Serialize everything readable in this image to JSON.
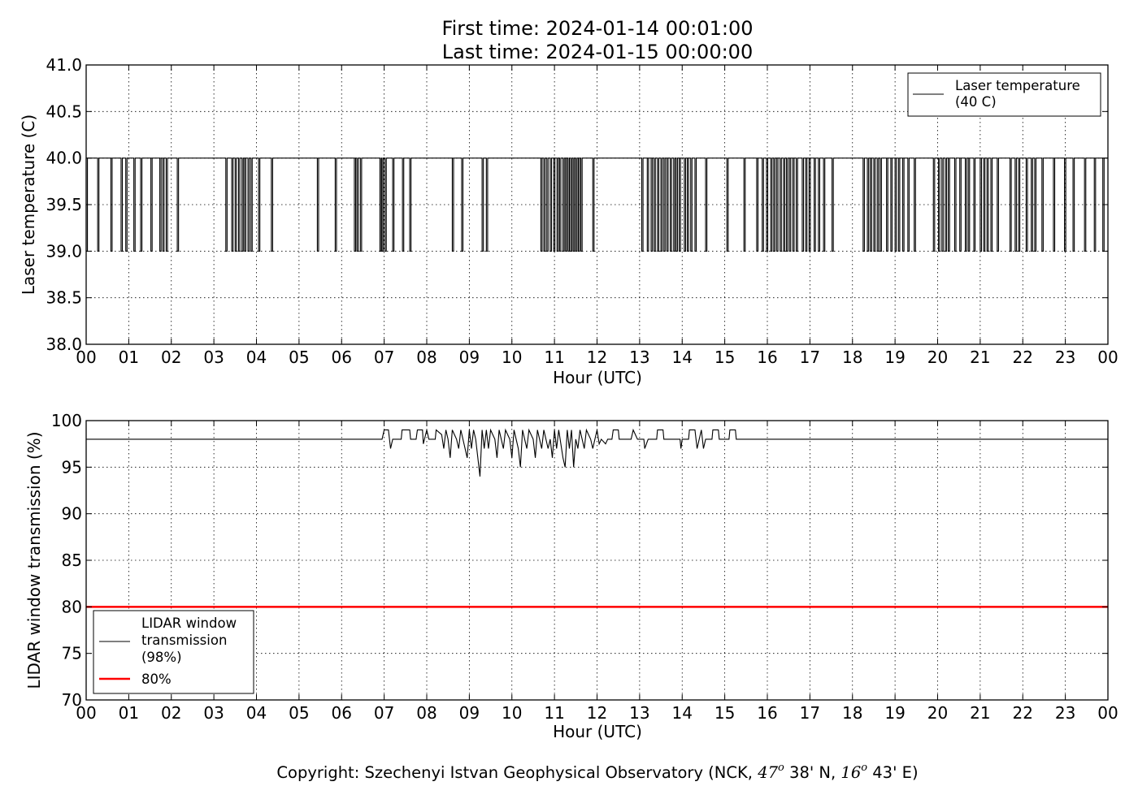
{
  "header": {
    "title_line1": "First time: 2024-01-14 00:01:00",
    "title_line2": "Last time: 2024-01-15 00:00:00"
  },
  "footer": {
    "prefix": "Copyright: Szechenyi Istvan Geophysical Observatory (NCK, ",
    "lat_deg": "47",
    "lat_min": " 38' N, ",
    "lon_deg": "16",
    "lon_min": " 43' E)",
    "degree_mark": "o"
  },
  "chart_data": [
    {
      "type": "line",
      "ylabel": "Laser temperature (C)",
      "xlabel": "Hour (UTC)",
      "x_tick_labels": [
        "00",
        "01",
        "02",
        "03",
        "04",
        "05",
        "06",
        "07",
        "08",
        "09",
        "10",
        "11",
        "12",
        "13",
        "14",
        "15",
        "16",
        "17",
        "18",
        "19",
        "20",
        "21",
        "22",
        "23",
        "00"
      ],
      "y_ticks": [
        38.0,
        38.5,
        39.0,
        39.5,
        40.0,
        40.5,
        41.0
      ],
      "y_tick_labels": [
        "38.0",
        "38.5",
        "39.0",
        "39.5",
        "40.0",
        "40.5",
        "41.0"
      ],
      "xlim": [
        0,
        24
      ],
      "ylim": [
        38.0,
        41.0
      ],
      "grid": true,
      "legend_position": "top-right",
      "series": [
        {
          "name_lines": [
            "Laser temperature",
            "(40 C)"
          ],
          "color": "#000000",
          "baseline": 40.0,
          "dip_value": 39.0,
          "dips_hours": [
            [
              0.0,
              0.03
            ],
            [
              0.27,
              0.3
            ],
            [
              0.58,
              0.61
            ],
            [
              0.82,
              0.85
            ],
            [
              0.93,
              0.96
            ],
            [
              1.12,
              1.15
            ],
            [
              1.28,
              1.31
            ],
            [
              1.52,
              1.55
            ],
            [
              1.73,
              1.76
            ],
            [
              1.8,
              1.83
            ],
            [
              1.88,
              1.91
            ],
            [
              2.14,
              2.17
            ],
            [
              3.28,
              3.31
            ],
            [
              3.42,
              3.45
            ],
            [
              3.5,
              3.53
            ],
            [
              3.58,
              3.61
            ],
            [
              3.66,
              3.69
            ],
            [
              3.72,
              3.75
            ],
            [
              3.8,
              3.83
            ],
            [
              3.87,
              3.9
            ],
            [
              4.05,
              4.08
            ],
            [
              4.35,
              4.38
            ],
            [
              5.43,
              5.46
            ],
            [
              5.85,
              5.88
            ],
            [
              6.3,
              6.33
            ],
            [
              6.36,
              6.39
            ],
            [
              6.44,
              6.47
            ],
            [
              6.9,
              6.93
            ],
            [
              6.95,
              6.98
            ],
            [
              7.02,
              7.05
            ],
            [
              7.2,
              7.23
            ],
            [
              7.43,
              7.46
            ],
            [
              7.6,
              7.63
            ],
            [
              8.6,
              8.63
            ],
            [
              8.82,
              8.85
            ],
            [
              9.3,
              9.33
            ],
            [
              9.4,
              9.43
            ],
            [
              10.68,
              10.71
            ],
            [
              10.75,
              10.78
            ],
            [
              10.82,
              10.85
            ],
            [
              10.9,
              10.93
            ],
            [
              10.98,
              11.01
            ],
            [
              11.06,
              11.09
            ],
            [
              11.12,
              11.15
            ],
            [
              11.2,
              11.23
            ],
            [
              11.26,
              11.29
            ],
            [
              11.32,
              11.35
            ],
            [
              11.38,
              11.41
            ],
            [
              11.44,
              11.47
            ],
            [
              11.5,
              11.53
            ],
            [
              11.56,
              11.59
            ],
            [
              11.62,
              11.65
            ],
            [
              11.9,
              11.93
            ],
            [
              13.05,
              13.08
            ],
            [
              13.18,
              13.21
            ],
            [
              13.27,
              13.3
            ],
            [
              13.34,
              13.37
            ],
            [
              13.42,
              13.45
            ],
            [
              13.5,
              13.53
            ],
            [
              13.57,
              13.6
            ],
            [
              13.64,
              13.67
            ],
            [
              13.72,
              13.75
            ],
            [
              13.8,
              13.83
            ],
            [
              13.86,
              13.89
            ],
            [
              13.93,
              13.96
            ],
            [
              14.05,
              14.08
            ],
            [
              14.12,
              14.15
            ],
            [
              14.2,
              14.23
            ],
            [
              14.3,
              14.33
            ],
            [
              14.55,
              14.58
            ],
            [
              15.05,
              15.08
            ],
            [
              15.45,
              15.48
            ],
            [
              15.75,
              15.78
            ],
            [
              15.88,
              15.91
            ],
            [
              15.98,
              16.01
            ],
            [
              16.08,
              16.11
            ],
            [
              16.15,
              16.18
            ],
            [
              16.22,
              16.25
            ],
            [
              16.3,
              16.33
            ],
            [
              16.38,
              16.41
            ],
            [
              16.45,
              16.48
            ],
            [
              16.52,
              16.55
            ],
            [
              16.6,
              16.63
            ],
            [
              16.68,
              16.71
            ],
            [
              16.82,
              16.85
            ],
            [
              16.9,
              16.93
            ],
            [
              16.98,
              17.01
            ],
            [
              17.1,
              17.13
            ],
            [
              17.2,
              17.23
            ],
            [
              17.32,
              17.35
            ],
            [
              17.52,
              17.55
            ],
            [
              18.25,
              18.28
            ],
            [
              18.35,
              18.38
            ],
            [
              18.42,
              18.45
            ],
            [
              18.5,
              18.53
            ],
            [
              18.58,
              18.61
            ],
            [
              18.65,
              18.68
            ],
            [
              18.8,
              18.83
            ],
            [
              18.9,
              18.93
            ],
            [
              19.0,
              19.03
            ],
            [
              19.08,
              19.11
            ],
            [
              19.18,
              19.21
            ],
            [
              19.3,
              19.33
            ],
            [
              19.45,
              19.48
            ],
            [
              19.9,
              19.93
            ],
            [
              20.02,
              20.05
            ],
            [
              20.1,
              20.13
            ],
            [
              20.18,
              20.21
            ],
            [
              20.25,
              20.28
            ],
            [
              20.4,
              20.43
            ],
            [
              20.52,
              20.55
            ],
            [
              20.65,
              20.68
            ],
            [
              20.72,
              20.75
            ],
            [
              20.85,
              20.88
            ],
            [
              21.0,
              21.03
            ],
            [
              21.08,
              21.11
            ],
            [
              21.16,
              21.19
            ],
            [
              21.25,
              21.28
            ],
            [
              21.4,
              21.43
            ],
            [
              21.7,
              21.73
            ],
            [
              21.82,
              21.85
            ],
            [
              21.9,
              21.93
            ],
            [
              22.08,
              22.11
            ],
            [
              22.2,
              22.23
            ],
            [
              22.28,
              22.31
            ],
            [
              22.45,
              22.48
            ],
            [
              22.72,
              22.75
            ],
            [
              22.98,
              23.01
            ],
            [
              23.18,
              23.21
            ],
            [
              23.45,
              23.48
            ],
            [
              23.68,
              23.71
            ],
            [
              23.88,
              23.91
            ]
          ]
        }
      ]
    },
    {
      "type": "line",
      "ylabel": "LIDAR window transmission (%)",
      "xlabel": "Hour (UTC)",
      "x_tick_labels": [
        "00",
        "01",
        "02",
        "03",
        "04",
        "05",
        "06",
        "07",
        "08",
        "09",
        "10",
        "11",
        "12",
        "13",
        "14",
        "15",
        "16",
        "17",
        "18",
        "19",
        "20",
        "21",
        "22",
        "23",
        "00"
      ],
      "y_ticks": [
        70,
        75,
        80,
        85,
        90,
        95,
        100
      ],
      "y_tick_labels": [
        "70",
        "75",
        "80",
        "85",
        "90",
        "95",
        "100"
      ],
      "xlim": [
        0,
        24
      ],
      "ylim": [
        70,
        100
      ],
      "grid": true,
      "legend_position": "bottom-left",
      "series": [
        {
          "name_lines": [
            "LIDAR window",
            "transmission",
            "(98%)"
          ],
          "color": "#000000",
          "baseline": 98,
          "active_range_hours": [
            6.95,
            15.35
          ],
          "points": [
            [
              0,
              98
            ],
            [
              6.95,
              98
            ],
            [
              7.0,
              99
            ],
            [
              7.1,
              99
            ],
            [
              7.15,
              97
            ],
            [
              7.2,
              98
            ],
            [
              7.4,
              98
            ],
            [
              7.42,
              99
            ],
            [
              7.6,
              99
            ],
            [
              7.62,
              98
            ],
            [
              7.75,
              98
            ],
            [
              7.78,
              99
            ],
            [
              7.9,
              99
            ],
            [
              7.92,
              97.5
            ],
            [
              8.0,
              99
            ],
            [
              8.05,
              98
            ],
            [
              8.2,
              98
            ],
            [
              8.22,
              99
            ],
            [
              8.35,
              98.5
            ],
            [
              8.4,
              97
            ],
            [
              8.45,
              99
            ],
            [
              8.5,
              98
            ],
            [
              8.55,
              96
            ],
            [
              8.6,
              99
            ],
            [
              8.7,
              98
            ],
            [
              8.75,
              97
            ],
            [
              8.8,
              99
            ],
            [
              8.85,
              98
            ],
            [
              8.95,
              96
            ],
            [
              9.0,
              99
            ],
            [
              9.05,
              97
            ],
            [
              9.1,
              99
            ],
            [
              9.15,
              98
            ],
            [
              9.2,
              96
            ],
            [
              9.25,
              94
            ],
            [
              9.3,
              99
            ],
            [
              9.35,
              97
            ],
            [
              9.4,
              99
            ],
            [
              9.45,
              97
            ],
            [
              9.5,
              99
            ],
            [
              9.6,
              98
            ],
            [
              9.65,
              96
            ],
            [
              9.7,
              99
            ],
            [
              9.8,
              97
            ],
            [
              9.85,
              99
            ],
            [
              9.95,
              98
            ],
            [
              10.0,
              96
            ],
            [
              10.05,
              99
            ],
            [
              10.15,
              97
            ],
            [
              10.2,
              95
            ],
            [
              10.25,
              99
            ],
            [
              10.35,
              97
            ],
            [
              10.4,
              99
            ],
            [
              10.5,
              98
            ],
            [
              10.55,
              96
            ],
            [
              10.6,
              99
            ],
            [
              10.7,
              97
            ],
            [
              10.75,
              99
            ],
            [
              10.85,
              97
            ],
            [
              10.9,
              98
            ],
            [
              10.95,
              96
            ],
            [
              11.0,
              99
            ],
            [
              11.05,
              97
            ],
            [
              11.1,
              99
            ],
            [
              11.2,
              96
            ],
            [
              11.25,
              95
            ],
            [
              11.3,
              99
            ],
            [
              11.35,
              97
            ],
            [
              11.4,
              99
            ],
            [
              11.45,
              95
            ],
            [
              11.5,
              98
            ],
            [
              11.55,
              97
            ],
            [
              11.6,
              99
            ],
            [
              11.7,
              97
            ],
            [
              11.75,
              99
            ],
            [
              11.85,
              98
            ],
            [
              11.9,
              97
            ],
            [
              11.95,
              98
            ],
            [
              12.0,
              99
            ],
            [
              12.05,
              97.5
            ],
            [
              12.1,
              98
            ],
            [
              12.2,
              97.5
            ],
            [
              12.25,
              98
            ],
            [
              12.35,
              98
            ],
            [
              12.38,
              99
            ],
            [
              12.5,
              99
            ],
            [
              12.52,
              98
            ],
            [
              12.8,
              98
            ],
            [
              12.85,
              99
            ],
            [
              12.95,
              98
            ],
            [
              13.1,
              98
            ],
            [
              13.12,
              97
            ],
            [
              13.2,
              98
            ],
            [
              13.4,
              98
            ],
            [
              13.42,
              99
            ],
            [
              13.55,
              99
            ],
            [
              13.57,
              98
            ],
            [
              13.95,
              98
            ],
            [
              13.97,
              97
            ],
            [
              14.0,
              98
            ],
            [
              14.15,
              98
            ],
            [
              14.17,
              99
            ],
            [
              14.3,
              99
            ],
            [
              14.35,
              97
            ],
            [
              14.45,
              99
            ],
            [
              14.5,
              97
            ],
            [
              14.55,
              98
            ],
            [
              14.7,
              98
            ],
            [
              14.72,
              99
            ],
            [
              14.85,
              99
            ],
            [
              14.87,
              98
            ],
            [
              15.1,
              98
            ],
            [
              15.12,
              99
            ],
            [
              15.25,
              99
            ],
            [
              15.27,
              98
            ],
            [
              15.35,
              98
            ],
            [
              24,
              98
            ]
          ]
        },
        {
          "name": "80%",
          "color": "#ff0000",
          "constant": 80
        }
      ]
    }
  ]
}
